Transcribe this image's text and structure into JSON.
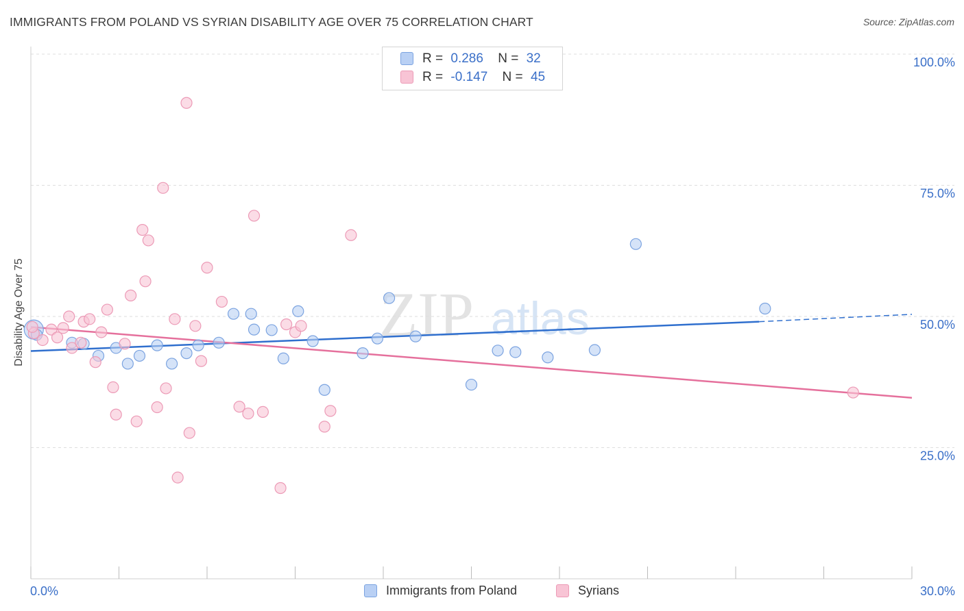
{
  "title": "IMMIGRANTS FROM POLAND VS SYRIAN DISABILITY AGE OVER 75 CORRELATION CHART",
  "source": "Source: ZipAtlas.com",
  "watermark": {
    "zip": "ZIP",
    "atlas": "atlas"
  },
  "legend_top": {
    "rows": [
      {
        "r_label": "R =",
        "r_value": "0.286",
        "n_label": "N =",
        "n_value": "32"
      },
      {
        "r_label": "R =",
        "r_value": "-0.147",
        "n_label": "N =",
        "n_value": "45"
      }
    ]
  },
  "legend_bottom": {
    "series1": "Immigrants from Poland",
    "series2": "Syrians"
  },
  "colors": {
    "poland_fill": "#b9d0f4",
    "poland_stroke": "#7ba3e0",
    "poland_line": "#2f6fce",
    "syrian_fill": "#f8c4d5",
    "syrian_stroke": "#ec9ab6",
    "syrian_line": "#e5709c",
    "grid": "#dddddd",
    "tick_text": "#3a6fc8"
  },
  "chart_data": {
    "type": "scatter",
    "title": "IMMIGRANTS FROM POLAND VS SYRIAN DISABILITY AGE OVER 75 CORRELATION CHART",
    "xlabel": "",
    "ylabel": "Disability Age Over 75",
    "xlim": [
      0,
      30
    ],
    "ylim": [
      0,
      100
    ],
    "x_tick_labels": [
      "0.0%",
      "30.0%"
    ],
    "y_ticks": [
      25,
      50,
      75,
      100
    ],
    "y_tick_labels": [
      "25.0%",
      "50.0%",
      "75.0%",
      "100.0%"
    ],
    "grid": true,
    "legend_position": "bottom",
    "series": [
      {
        "name": "Immigrants from Poland",
        "r": 0.286,
        "n": 32,
        "trend": {
          "x0": 0,
          "y0": 43.4,
          "x1": 24.8,
          "y1": 49.0,
          "dashed_to_x": 30,
          "dashed_to_y": 50.4
        },
        "points": [
          [
            0.1,
            47.5
          ],
          [
            0.2,
            46.5
          ],
          [
            1.4,
            45.0
          ],
          [
            1.8,
            44.8
          ],
          [
            2.3,
            42.5
          ],
          [
            2.9,
            44.0
          ],
          [
            3.3,
            41.0
          ],
          [
            3.7,
            42.5
          ],
          [
            4.3,
            44.5
          ],
          [
            4.8,
            41.0
          ],
          [
            5.3,
            43.0
          ],
          [
            5.7,
            44.5
          ],
          [
            6.4,
            45.0
          ],
          [
            6.9,
            50.5
          ],
          [
            7.5,
            50.5
          ],
          [
            7.6,
            47.5
          ],
          [
            8.2,
            47.4
          ],
          [
            8.6,
            42.0
          ],
          [
            9.1,
            51.0
          ],
          [
            9.6,
            45.3
          ],
          [
            10.0,
            36.0
          ],
          [
            11.3,
            43.0
          ],
          [
            11.8,
            45.8
          ],
          [
            12.2,
            53.5
          ],
          [
            13.1,
            46.2
          ],
          [
            15.0,
            37.0
          ],
          [
            15.9,
            43.5
          ],
          [
            16.5,
            43.2
          ],
          [
            17.6,
            42.2
          ],
          [
            19.2,
            43.6
          ],
          [
            20.6,
            63.8
          ],
          [
            25.0,
            51.5
          ]
        ]
      },
      {
        "name": "Syrians",
        "r": -0.147,
        "n": 45,
        "trend": {
          "x0": 0,
          "y0": 48.0,
          "x1": 30,
          "y1": 34.5
        },
        "points": [
          [
            0.1,
            46.8
          ],
          [
            0.4,
            45.5
          ],
          [
            0.7,
            47.5
          ],
          [
            0.9,
            46.0
          ],
          [
            1.1,
            47.8
          ],
          [
            1.3,
            50.0
          ],
          [
            1.4,
            44.0
          ],
          [
            1.7,
            45.0
          ],
          [
            1.8,
            49.0
          ],
          [
            2.0,
            49.5
          ],
          [
            2.2,
            41.3
          ],
          [
            2.4,
            47.0
          ],
          [
            2.6,
            51.3
          ],
          [
            2.8,
            36.5
          ],
          [
            2.9,
            31.3
          ],
          [
            3.2,
            44.8
          ],
          [
            3.4,
            54.0
          ],
          [
            3.6,
            30.0
          ],
          [
            3.8,
            66.5
          ],
          [
            3.9,
            56.7
          ],
          [
            4.0,
            64.5
          ],
          [
            4.3,
            32.7
          ],
          [
            4.5,
            74.5
          ],
          [
            4.6,
            36.3
          ],
          [
            4.9,
            49.5
          ],
          [
            5.0,
            19.3
          ],
          [
            5.3,
            90.7
          ],
          [
            5.4,
            27.8
          ],
          [
            5.6,
            48.2
          ],
          [
            5.8,
            41.5
          ],
          [
            6.0,
            59.3
          ],
          [
            6.5,
            52.8
          ],
          [
            7.1,
            32.8
          ],
          [
            7.4,
            31.5
          ],
          [
            7.6,
            69.2
          ],
          [
            7.9,
            31.8
          ],
          [
            8.5,
            17.3
          ],
          [
            8.7,
            48.5
          ],
          [
            9.0,
            47.0
          ],
          [
            9.2,
            48.2
          ],
          [
            10.0,
            29.0
          ],
          [
            10.2,
            32.0
          ],
          [
            10.9,
            65.5
          ],
          [
            28.0,
            35.5
          ],
          [
            0.05,
            48.0
          ]
        ]
      }
    ]
  }
}
